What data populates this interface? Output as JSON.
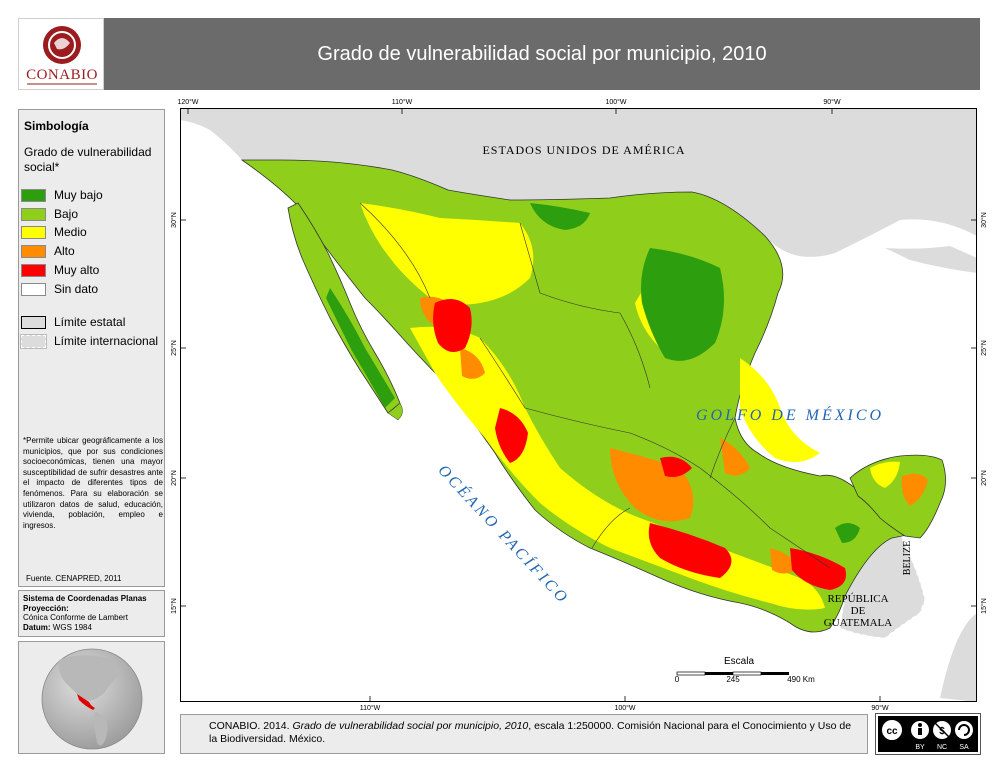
{
  "header": {
    "logo_text": "CONABIO",
    "title": "Grado de vulnerabilidad social por municipio, 2010"
  },
  "legend": {
    "title": "Simbología",
    "subtitle": "Grado de vulnerabilidad social*",
    "classes": [
      {
        "label": "Muy bajo",
        "color": "#2d9e0e"
      },
      {
        "label": "Bajo",
        "color": "#8fcf1c"
      },
      {
        "label": "Medio",
        "color": "#ffff00"
      },
      {
        "label": "Alto",
        "color": "#ff8c00"
      },
      {
        "label": "Muy alto",
        "color": "#ff0000"
      },
      {
        "label": "Sin dato",
        "color": "#ffffff"
      }
    ],
    "boundaries": [
      {
        "label": "Límite estatal"
      },
      {
        "label": "Límite internacional"
      }
    ],
    "note": "*Permite ubicar geográficamente a los municipios, que por sus condiciones socioeconómicas, tienen una mayor susceptibilidad de sufrir desastres ante el impacto de diferentes tipos de fenómenos. Para su elaboración se utilizaron datos de salud, educación, vivienda, población, empleo e ingresos.",
    "source": "Fuente. CENAPRED, 2011"
  },
  "coordinates": {
    "system_label": "Sistema de Coordenadas Planas",
    "projection_label": "Proyección:",
    "projection_value": "Cónica Conforme de Lambert",
    "datum_label": "Datum:",
    "datum_value": "WGS 1984"
  },
  "map": {
    "top_ticks": [
      "120°W",
      "110°W",
      "100°W",
      "90°W"
    ],
    "bottom_ticks": [
      "110°W",
      "100°W",
      "90°W"
    ],
    "left_ticks": [
      "30°N",
      "25°N",
      "20°N",
      "15°N"
    ],
    "right_ticks": [
      "30°N",
      "25°N",
      "20°N",
      "15°N"
    ],
    "labels": {
      "usa": "ESTADOS UNIDOS DE AMÉRICA",
      "gulf": "GOLFO DE MÉXICO",
      "pacific": "OCÉANO PACÍFICO",
      "belize": "BELIZE",
      "guatemala_1": "REPÚBLICA",
      "guatemala_2": "DE",
      "guatemala_3": "GUATEMALA"
    },
    "scale": {
      "title": "Escala",
      "ticks": [
        "0",
        "245",
        "490 Km"
      ]
    },
    "colors": {
      "water": "#ffffff",
      "land_foreign": "#dcdcdc",
      "frame": "#000000"
    }
  },
  "citation": {
    "prefix": "CONABIO. 2014. ",
    "title": "Grado de vulnerabilidad social por municipio, 2010",
    "suffix": ", escala 1:250000. Comisión Nacional para el Conocimiento y Uso de la Biodiversidad. México."
  },
  "license": {
    "badge": "cc",
    "terms": [
      "BY",
      "NC",
      "SA"
    ]
  }
}
